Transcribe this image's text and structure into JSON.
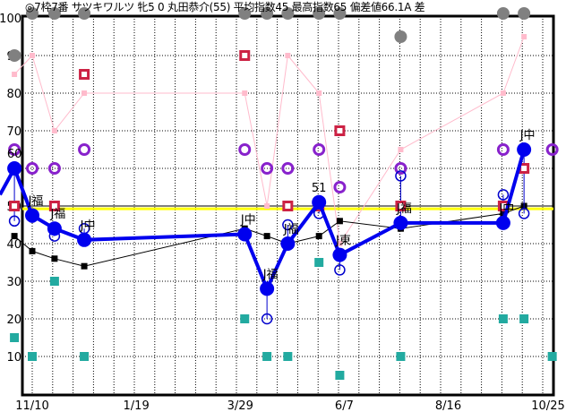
{
  "chart_data": {
    "type": "line",
    "title": "◎7枠7番 サツキワルツ 牝5 0 丸田恭介(55) 平均指数45 最高指数65 偏差値66.1A 差",
    "ylim": [
      0,
      100
    ],
    "yticks": [
      "100",
      "90",
      "80",
      "70",
      "60",
      "50",
      "40",
      "30",
      "20",
      "10"
    ],
    "xticks": [
      "11/10",
      "1/19",
      "3/29",
      "6/7",
      "8/16",
      "10/25"
    ],
    "grid": true,
    "reference_line": {
      "value": 49.5,
      "color": "#ffff00"
    },
    "colors": {
      "main": "#0000ee",
      "average": "#000000",
      "red_square": "#cc2244",
      "purple_circle": "#8822cc",
      "hollow_circle": "#0000cc",
      "teal_square": "#22aaa0",
      "pink": "#ffbbcc",
      "gray_circle": "#808080"
    },
    "races": [
      {
        "date": "10/29",
        "main": 60,
        "label": "60",
        "average": 42,
        "red": 50,
        "purple": 65,
        "hollow": 46,
        "teal": 15,
        "pink": 85,
        "gray": 90
      },
      {
        "date": "11/10",
        "main": 47.5,
        "label": "J福",
        "average": 38,
        "red": null,
        "purple": 60,
        "hollow": 47,
        "teal": 10,
        "pink": 90,
        "gray": 100
      },
      {
        "date": "11/25",
        "main": 44,
        "label": "J福",
        "average": 36,
        "red": 50,
        "purple": 60,
        "hollow": 42,
        "teal": 30,
        "pink": 70,
        "gray": 100
      },
      {
        "date": "12/15",
        "main": 41,
        "label": "J中",
        "average": 34,
        "red": 85,
        "purple": 65,
        "hollow": 44,
        "teal": 10,
        "pink": 80,
        "gray": 100
      },
      {
        "date": "4/1",
        "main": 42.5,
        "label": "J中",
        "average": 44,
        "red": 90,
        "purple": 65,
        "hollow": null,
        "teal": 20,
        "pink": 80,
        "gray": 100
      },
      {
        "date": "4/16",
        "main": 28,
        "label": "J福",
        "average": 42,
        "red": null,
        "purple": 60,
        "hollow": 20,
        "teal": 10,
        "pink": 50,
        "gray": 100
      },
      {
        "date": "4/30",
        "main": 40,
        "label": "J福",
        "average": 40,
        "red": 50,
        "purple": 60,
        "hollow": 45,
        "teal": 10,
        "pink": 90,
        "gray": 100
      },
      {
        "date": "5/21",
        "main": 51,
        "label": "51",
        "average": 42,
        "red": 50,
        "purple": 65,
        "hollow": 48,
        "teal": 35,
        "pink": 80,
        "gray": 100
      },
      {
        "date": "6/4",
        "main": 37,
        "label": "J東",
        "average": 46,
        "red": 70,
        "purple": 55,
        "hollow": 33,
        "teal": 5,
        "pink": 40,
        "gray": 100
      },
      {
        "date": "7/15",
        "main": 45.5,
        "label": "J福",
        "average": 44,
        "red": 50,
        "purple": 60,
        "hollow": 58,
        "teal": 10,
        "pink": 65,
        "gray": 95
      },
      {
        "date": "9/22",
        "main": 45.5,
        "label": "J中",
        "average": 48,
        "red": 50,
        "purple": 65,
        "hollow": 53,
        "teal": 20,
        "pink": 80,
        "gray": 100
      },
      {
        "date": "10/6",
        "main": 65,
        "label": "J中",
        "average": 50,
        "red": 60,
        "purple": 65,
        "hollow": 48,
        "teal": 20,
        "pink": 95,
        "gray": 100
      },
      {
        "date": "10/25",
        "main": null,
        "label": "",
        "average": null,
        "red": null,
        "purple": 65,
        "hollow": null,
        "teal": 10,
        "pink": null,
        "gray": null
      }
    ]
  }
}
